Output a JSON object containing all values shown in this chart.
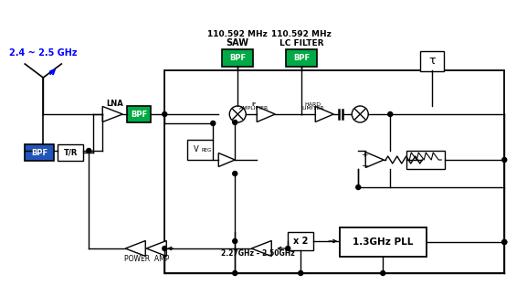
{
  "bg_color": "#ffffff",
  "green_color": "#00aa44",
  "blue_bpf_color": "#2255bb",
  "main_freq": "2.4 ~ 2.5 GHz",
  "freq_saw_1": "110.592 MHz",
  "freq_saw_2": "SAW",
  "freq_lc_1": "110.592 MHz",
  "freq_lc_2": "LC FILTER",
  "bpf_label": "BPF",
  "tr_label": "T/R",
  "lna_label": "LNA",
  "if_amp_line1": "IF",
  "if_amp_line2": "AMPLIFIER",
  "hard_lim_line1": "HARD",
  "hard_lim_line2": "LIMITER",
  "vreg_label": "V",
  "vreg_sub": "REG",
  "x2_label": "x 2",
  "pll_label": "1.3GHz PLL",
  "power_amp_label": "POWER  AMP",
  "freq_range_label": "2.27GHz – 2.50GHz",
  "tau_label": "τ"
}
